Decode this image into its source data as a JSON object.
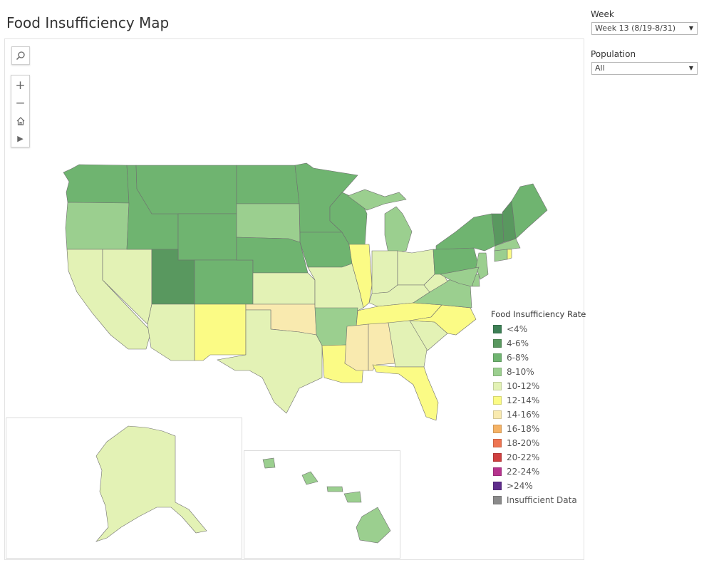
{
  "page": {
    "title": "Food Insufficiency Map"
  },
  "filters": {
    "week": {
      "label": "Week",
      "value": "Week 13 (8/19-8/31)"
    },
    "population": {
      "label": "Population",
      "value": "All"
    }
  },
  "toolbar": {
    "search_icon": "search-icon",
    "zoom_in": "+",
    "zoom_out": "−",
    "home_icon": "home-icon",
    "play_icon": "▶"
  },
  "legend": {
    "title": "Food Insufficiency Rate",
    "items": [
      {
        "label": "<4%",
        "color": "#3d7f55"
      },
      {
        "label": "4-6%",
        "color": "#59985f"
      },
      {
        "label": "6-8%",
        "color": "#6fb470"
      },
      {
        "label": "8-10%",
        "color": "#9bcf8f"
      },
      {
        "label": "10-12%",
        "color": "#e3f2b5"
      },
      {
        "label": "12-14%",
        "color": "#fbfb85"
      },
      {
        "label": "14-16%",
        "color": "#f9eaaf"
      },
      {
        "label": "16-18%",
        "color": "#f5b265"
      },
      {
        "label": "18-20%",
        "color": "#ee7451"
      },
      {
        "label": "20-22%",
        "color": "#cf3f3f"
      },
      {
        "label": "22-24%",
        "color": "#b5338d"
      },
      {
        "label": ">24%",
        "color": "#5e2c8b"
      },
      {
        "label": "Insufficient Data",
        "color": "#8a8a8a"
      }
    ]
  },
  "map_data": {
    "rate_bins": {
      "WA": "6-8%",
      "OR": "8-10%",
      "CA": "10-12%",
      "NV": "10-12%",
      "ID": "6-8%",
      "MT": "6-8%",
      "WY": "6-8%",
      "UT": "4-6%",
      "AZ": "10-12%",
      "CO": "6-8%",
      "NM": "12-14%",
      "ND": "6-8%",
      "SD": "8-10%",
      "NE": "6-8%",
      "KS": "10-12%",
      "OK": "14-16%",
      "TX": "10-12%",
      "MN": "6-8%",
      "IA": "6-8%",
      "MO": "10-12%",
      "AR": "8-10%",
      "LA": "12-14%",
      "WI": "6-8%",
      "IL": "12-14%",
      "MI": "8-10%",
      "IN": "10-12%",
      "OH": "10-12%",
      "KY": "10-12%",
      "TN": "12-14%",
      "MS": "14-16%",
      "AL": "14-16%",
      "GA": "10-12%",
      "FL": "12-14%",
      "SC": "10-12%",
      "NC": "12-14%",
      "VA": "8-10%",
      "WV": "10-12%",
      "PA": "6-8%",
      "NY": "6-8%",
      "VT": "4-6%",
      "NH": "4-6%",
      "ME": "6-8%",
      "MA": "8-10%",
      "CT": "8-10%",
      "RI": "12-14%",
      "NJ": "8-10%",
      "DE": "8-10%",
      "MD": "8-10%",
      "AK": "10-12%",
      "HI": "8-10%"
    }
  }
}
